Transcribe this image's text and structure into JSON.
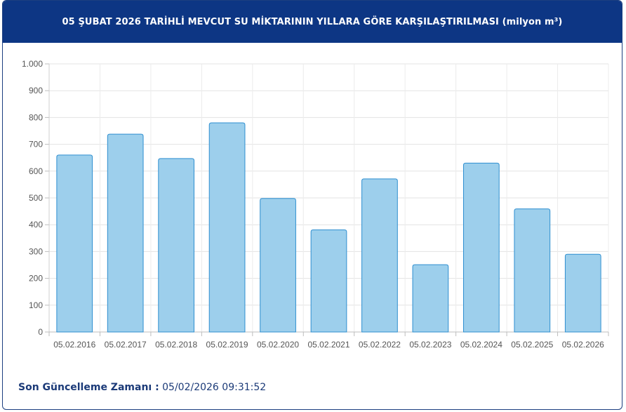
{
  "header": {
    "title": "05 ŞUBAT 2026 TARİHLİ MEVCUT SU MİKTARININ YILLARA GÖRE KARŞILAŞTIRILMASI (milyon m³)"
  },
  "footer": {
    "label": "Son Güncelleme Zamanı :",
    "value": "05/02/2026 09:31:52"
  },
  "colors": {
    "header_bg": "#0d3684",
    "bar_fill": "#9dcfec",
    "bar_stroke": "#2f8fd0",
    "footer_text": "#1b3a78"
  },
  "chart_data": {
    "type": "bar",
    "title": "05 ŞUBAT 2026 TARİHLİ MEVCUT SU MİKTARININ YILLARA GÖRE KARŞILAŞTIRILMASI (milyon m³)",
    "categories": [
      "05.02.2016",
      "05.02.2017",
      "05.02.2018",
      "05.02.2019",
      "05.02.2020",
      "05.02.2021",
      "05.02.2022",
      "05.02.2023",
      "05.02.2024",
      "05.02.2025",
      "05.02.2026"
    ],
    "values": [
      660,
      738,
      647,
      780,
      498,
      381,
      571,
      251,
      630,
      459,
      290
    ],
    "ylim": [
      0,
      1000
    ],
    "yticks": [
      0,
      100,
      200,
      300,
      400,
      500,
      600,
      700,
      800,
      900,
      1000
    ],
    "ytick_labels": [
      "0",
      "100",
      "200",
      "300",
      "400",
      "500",
      "600",
      "700",
      "800",
      "900",
      "1.000"
    ],
    "grid": true,
    "legend": "none"
  }
}
